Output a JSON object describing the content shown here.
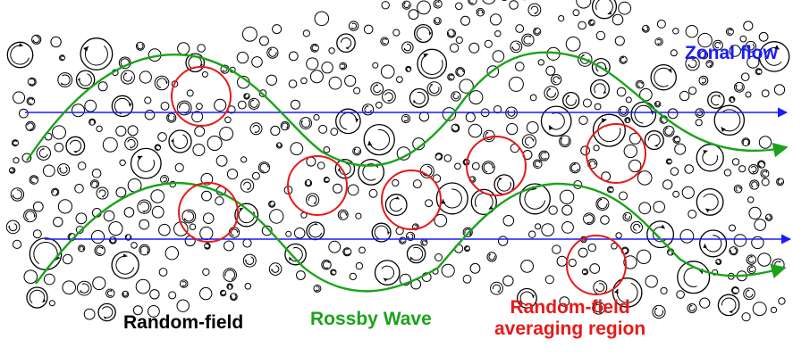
{
  "diagram": {
    "labels": {
      "zonal_flow": "Zonal flow",
      "random_field": "Random-field",
      "rossby_wave": "Rossby Wave",
      "averaging_region_line1": "Random-field",
      "averaging_region_line2": "averaging region"
    },
    "colors": {
      "zonal_flow": "#1a1aff",
      "rossby_wave": "#1aa31a",
      "averaging_region": "#e81818",
      "eddies": "#000000",
      "random_field_label": "#000000"
    },
    "elements": {
      "eddies": "many small black circles with circular arrows (random vortices)",
      "zonal_flow_lines": 2,
      "rossby_wave_curves": 2,
      "averaging_regions": 8
    }
  }
}
